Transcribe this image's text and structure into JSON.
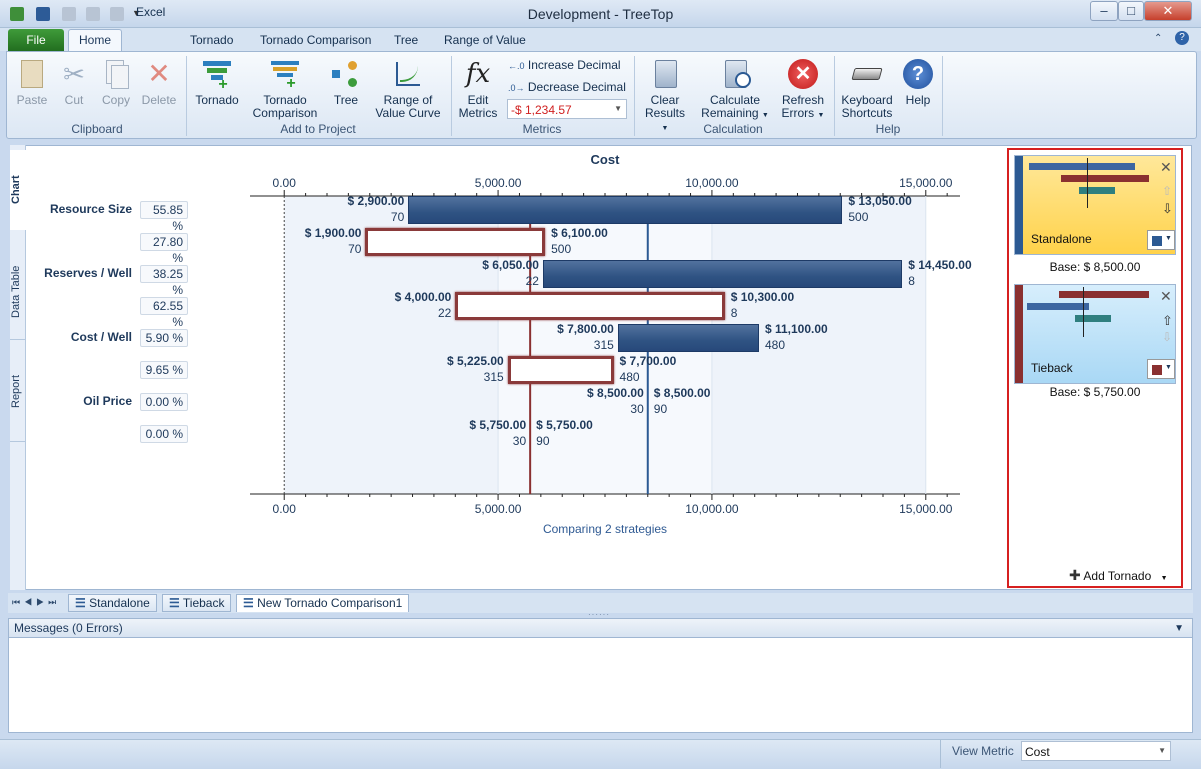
{
  "window": {
    "title": "Development - TreeTop"
  },
  "ribbon": {
    "file": "File",
    "tabs": [
      "Home",
      "Excel",
      "Tornado",
      "Tornado Comparison",
      "Tree",
      "Range of Value"
    ],
    "clipboard": {
      "paste": "Paste",
      "cut": "Cut",
      "copy": "Copy",
      "delete": "Delete",
      "group": "Clipboard"
    },
    "add": {
      "tornado": "Tornado",
      "tornado_comp_1": "Tornado",
      "tornado_comp_2": "Comparison",
      "tree": "Tree",
      "rov_1": "Range of",
      "rov_2": "Value Curve",
      "group": "Add to Project"
    },
    "metrics": {
      "edit_1": "Edit",
      "edit_2": "Metrics",
      "increase": "Increase Decimal",
      "decrease": "Decrease Decimal",
      "format": "-$ 1,234.57",
      "group": "Metrics"
    },
    "calc": {
      "clear_1": "Clear",
      "clear_2": "Results",
      "calc_1": "Calculate",
      "calc_2": "Remaining",
      "refresh_1": "Refresh",
      "refresh_2": "Errors",
      "group": "Calculation"
    },
    "help": {
      "kb_1": "Keyboard",
      "kb_2": "Shortcuts",
      "help": "Help",
      "group": "Help"
    }
  },
  "side_tabs": {
    "chart": "Chart",
    "data_table": "Data Table",
    "report": "Report"
  },
  "chart_data": {
    "type": "bar",
    "title": "Cost",
    "xlabel": "Comparing 2 strategies",
    "xticks": [
      "0.00",
      "5,000.00",
      "10,000.00",
      "15,000.00"
    ],
    "xlim": [
      -800,
      15800
    ],
    "xticks_values": [
      0,
      5000,
      10000,
      15000
    ],
    "base_lines": [
      {
        "name": "Standalone",
        "value": 8500,
        "color": "#2c5a93"
      },
      {
        "name": "Tieback",
        "value": 5750,
        "color": "#8a3030"
      }
    ],
    "variables": [
      {
        "name": "Resource Size",
        "rows": [
          {
            "strategy": "Standalone",
            "pct": "55.85 %",
            "low": 2900,
            "high": 13050,
            "low_label": "$ 2,900.00",
            "high_label": "$ 13,050.00",
            "low_sub": "70",
            "high_sub": "500"
          },
          {
            "strategy": "Tieback",
            "pct": "27.80 %",
            "low": 1900,
            "high": 6100,
            "low_label": "$ 1,900.00",
            "high_label": "$ 6,100.00",
            "low_sub": "70",
            "high_sub": "500"
          }
        ]
      },
      {
        "name": "Reserves / Well",
        "rows": [
          {
            "strategy": "Standalone",
            "pct": "38.25 %",
            "low": 6050,
            "high": 14450,
            "low_label": "$ 6,050.00",
            "high_label": "$ 14,450.00",
            "low_sub": "22",
            "high_sub": "8"
          },
          {
            "strategy": "Tieback",
            "pct": "62.55 %",
            "low": 4000,
            "high": 10300,
            "low_label": "$ 4,000.00",
            "high_label": "$ 10,300.00",
            "low_sub": "22",
            "high_sub": "8"
          }
        ]
      },
      {
        "name": "Cost / Well",
        "rows": [
          {
            "strategy": "Standalone",
            "pct": "5.90 %",
            "low": 7800,
            "high": 11100,
            "low_label": "$ 7,800.00",
            "high_label": "$ 11,100.00",
            "low_sub": "315",
            "high_sub": "480"
          },
          {
            "strategy": "Tieback",
            "pct": "9.65 %",
            "low": 5225,
            "high": 7700,
            "low_label": "$ 5,225.00",
            "high_label": "$ 7,700.00",
            "low_sub": "315",
            "high_sub": "480"
          }
        ]
      },
      {
        "name": "Oil Price",
        "rows": [
          {
            "strategy": "Standalone",
            "pct": "0.00 %",
            "low": 8500,
            "high": 8500,
            "low_label": "$ 8,500.00",
            "high_label": "$ 8,500.00",
            "low_sub": "30",
            "high_sub": "90"
          },
          {
            "strategy": "Tieback",
            "pct": "0.00 %",
            "low": 5750,
            "high": 5750,
            "low_label": "$ 5,750.00",
            "high_label": "$ 5,750.00",
            "low_sub": "30",
            "high_sub": "90"
          }
        ]
      }
    ]
  },
  "strategies": [
    {
      "name": "Standalone",
      "base": "Base: $ 8,500.00",
      "color": "#2c5a93"
    },
    {
      "name": "Tieback",
      "base": "Base: $ 5,750.00",
      "color": "#8a3030"
    }
  ],
  "add_tornado": "Add Tornado",
  "bottom_tabs": [
    "Standalone",
    "Tieback",
    "New Tornado Comparison1"
  ],
  "messages": {
    "title": "Messages (0 Errors)"
  },
  "status": {
    "view_metric_label": "View Metric",
    "view_metric_value": "Cost"
  }
}
